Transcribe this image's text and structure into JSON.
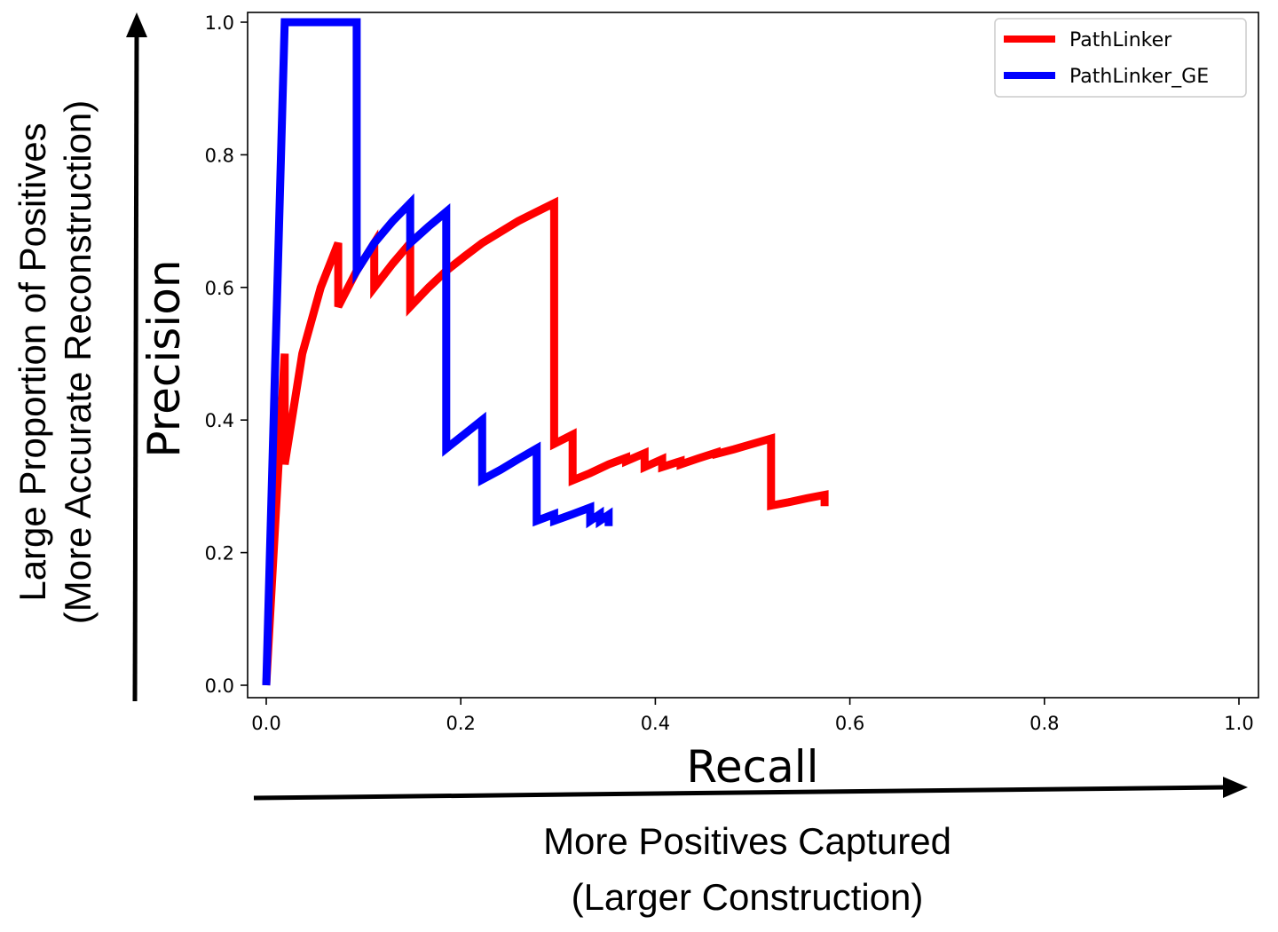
{
  "chart_data": {
    "type": "line",
    "xlabel": "Recall",
    "ylabel": "Precision",
    "xlim": [
      0.0,
      1.0
    ],
    "ylim": [
      0.0,
      1.0
    ],
    "xticks": [
      "0.0",
      "0.2",
      "0.4",
      "0.6",
      "0.8",
      "1.0"
    ],
    "yticks": [
      "0.0",
      "0.2",
      "0.4",
      "0.6",
      "0.8",
      "1.0"
    ],
    "grid": false,
    "legend_position": "top-right",
    "annotations": {
      "x_arrow_text_line1": "More Positives Captured",
      "x_arrow_text_line2": "(Larger Construction)",
      "y_arrow_text_line1": "Large Proportion of Positives",
      "y_arrow_text_line2": "(More Accurate Reconstruction)"
    },
    "series": [
      {
        "name": "PathLinker",
        "color": "#ff0000",
        "points": [
          [
            0.0,
            0.0
          ],
          [
            0.019,
            0.5
          ],
          [
            0.019,
            0.333
          ],
          [
            0.037,
            0.5
          ],
          [
            0.056,
            0.6
          ],
          [
            0.074,
            0.667
          ],
          [
            0.074,
            0.571
          ],
          [
            0.093,
            0.625
          ],
          [
            0.111,
            0.667
          ],
          [
            0.111,
            0.6
          ],
          [
            0.13,
            0.636
          ],
          [
            0.148,
            0.667
          ],
          [
            0.148,
            0.571
          ],
          [
            0.167,
            0.6
          ],
          [
            0.185,
            0.625
          ],
          [
            0.204,
            0.647
          ],
          [
            0.222,
            0.667
          ],
          [
            0.241,
            0.684
          ],
          [
            0.259,
            0.7
          ],
          [
            0.278,
            0.714
          ],
          [
            0.296,
            0.727
          ],
          [
            0.296,
            0.364
          ],
          [
            0.315,
            0.378
          ],
          [
            0.315,
            0.309
          ],
          [
            0.333,
            0.32
          ],
          [
            0.352,
            0.333
          ],
          [
            0.37,
            0.343
          ],
          [
            0.37,
            0.338
          ],
          [
            0.389,
            0.35
          ],
          [
            0.389,
            0.329
          ],
          [
            0.407,
            0.341
          ],
          [
            0.407,
            0.329
          ],
          [
            0.426,
            0.338
          ],
          [
            0.426,
            0.333
          ],
          [
            0.444,
            0.342
          ],
          [
            0.463,
            0.351
          ],
          [
            0.463,
            0.349
          ],
          [
            0.481,
            0.356
          ],
          [
            0.5,
            0.364
          ],
          [
            0.519,
            0.372
          ],
          [
            0.519,
            0.271
          ],
          [
            0.537,
            0.276
          ],
          [
            0.556,
            0.282
          ],
          [
            0.574,
            0.287
          ],
          [
            0.574,
            0.27
          ]
        ]
      },
      {
        "name": "PathLinker_GE",
        "color": "#0000ff",
        "points": [
          [
            0.0,
            0.0
          ],
          [
            0.019,
            1.0
          ],
          [
            0.093,
            1.0
          ],
          [
            0.093,
            0.625
          ],
          [
            0.111,
            0.667
          ],
          [
            0.13,
            0.7
          ],
          [
            0.148,
            0.727
          ],
          [
            0.148,
            0.667
          ],
          [
            0.167,
            0.692
          ],
          [
            0.185,
            0.714
          ],
          [
            0.185,
            0.357
          ],
          [
            0.204,
            0.379
          ],
          [
            0.222,
            0.4
          ],
          [
            0.222,
            0.31
          ],
          [
            0.241,
            0.325
          ],
          [
            0.259,
            0.341
          ],
          [
            0.278,
            0.357
          ],
          [
            0.278,
            0.248
          ],
          [
            0.296,
            0.258
          ],
          [
            0.296,
            0.248
          ],
          [
            0.315,
            0.258
          ],
          [
            0.333,
            0.268
          ],
          [
            0.333,
            0.248
          ],
          [
            0.343,
            0.258
          ],
          [
            0.343,
            0.248
          ],
          [
            0.352,
            0.257
          ],
          [
            0.352,
            0.24
          ]
        ]
      }
    ]
  }
}
